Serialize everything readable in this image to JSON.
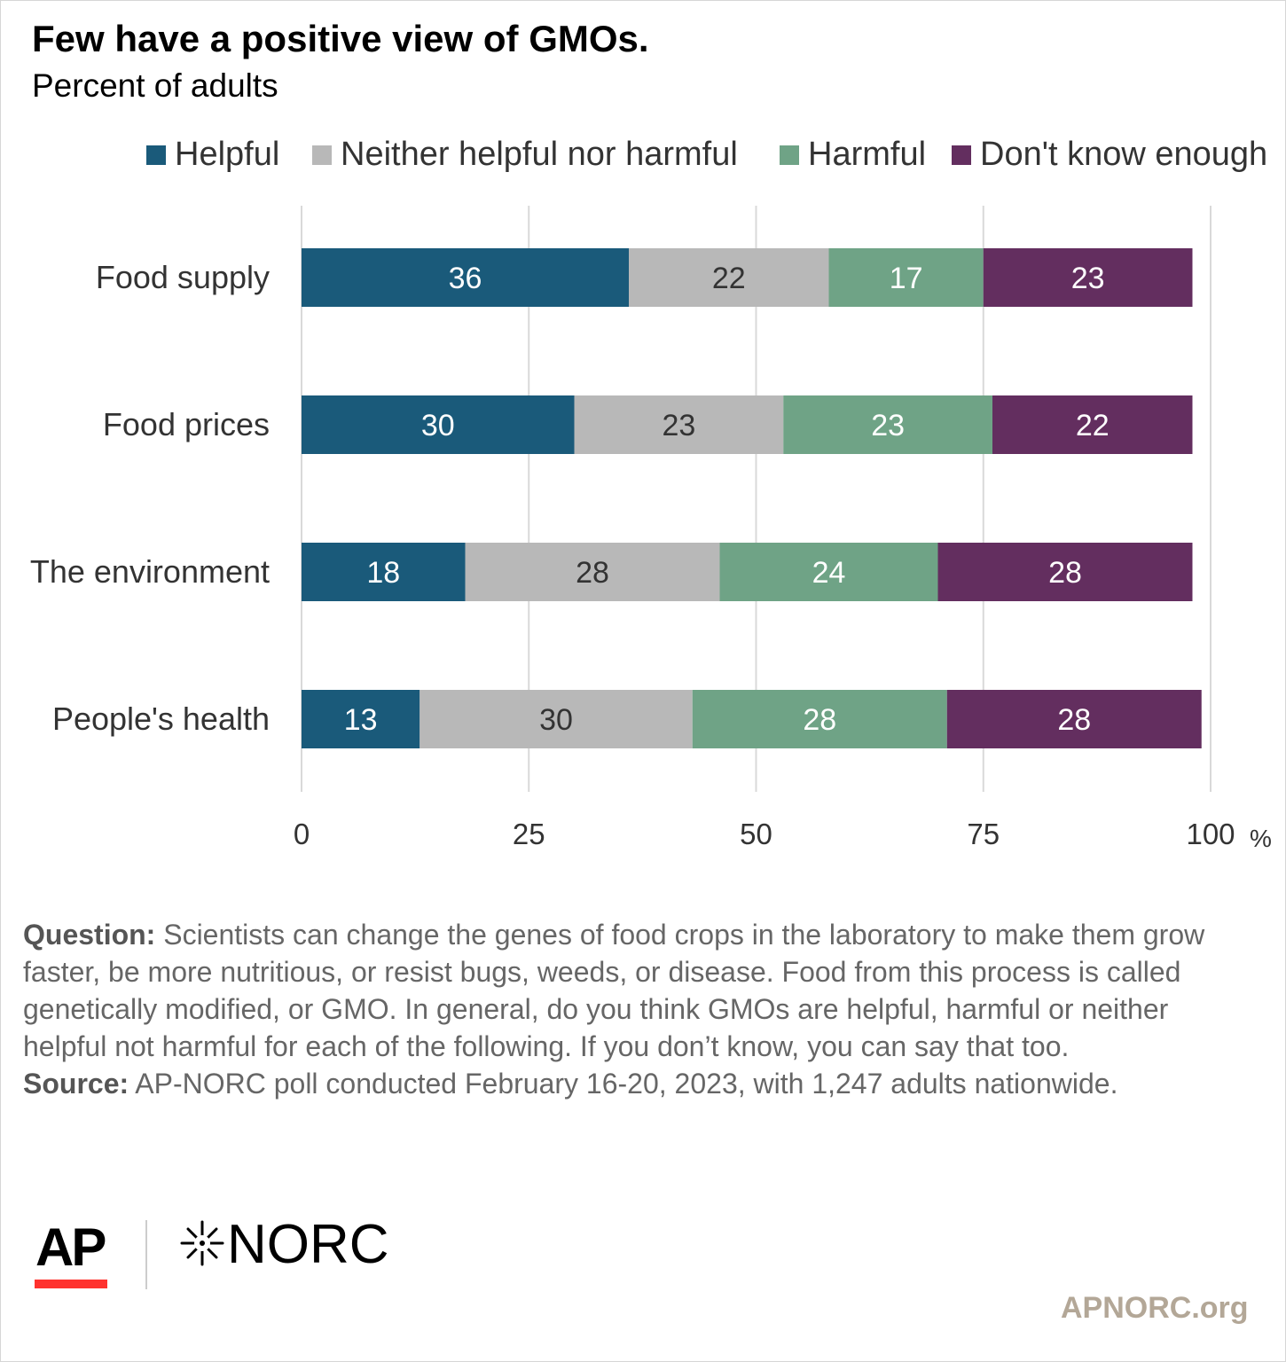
{
  "title": "Few have a positive view of GMOs.",
  "subtitle": "Percent of adults",
  "legend": [
    {
      "label": "Helpful",
      "color": "#1a5a7a"
    },
    {
      "label": "Neither helpful nor harmful",
      "color": "#b8b8b8"
    },
    {
      "label": "Harmful",
      "color": "#6fa386"
    },
    {
      "label": "Don't know enough",
      "color": "#632e5f"
    }
  ],
  "chart_data": {
    "type": "bar",
    "orientation": "horizontal",
    "stacked": true,
    "categories": [
      "Food supply",
      "Food prices",
      "The environment",
      "People's health"
    ],
    "series": [
      {
        "name": "Helpful",
        "color": "#1a5a7a",
        "label_color": "#ffffff",
        "values": [
          36,
          30,
          18,
          13
        ]
      },
      {
        "name": "Neither helpful nor harmful",
        "color": "#b8b8b8",
        "label_color": "#333333",
        "values": [
          22,
          23,
          28,
          30
        ]
      },
      {
        "name": "Harmful",
        "color": "#6fa386",
        "label_color": "#ffffff",
        "values": [
          17,
          23,
          24,
          28
        ]
      },
      {
        "name": "Don't know enough",
        "color": "#632e5f",
        "label_color": "#ffffff",
        "values": [
          23,
          22,
          28,
          28
        ]
      }
    ],
    "xlim": [
      0,
      100
    ],
    "xticks": [
      "0",
      "25",
      "50",
      "75",
      "100"
    ],
    "x_unit": "%",
    "grid": true,
    "legend_position": "top"
  },
  "notes": {
    "question_label": "Question:",
    "question_text": " Scientists can change the genes of food crops in the laboratory to make them grow faster, be more nutritious, or resist bugs, weeds, or disease. Food from this process is called genetically modified, or GMO.  In general, do you think GMOs are helpful, harmful or neither helpful not harmful for each of the following. If you don’t know, you can say that too.",
    "source_label": "Source:",
    "source_text": " AP-NORC poll conducted February 16-20, 2023, with 1,247 adults nationwide."
  },
  "branding": {
    "ap_logo": "AP",
    "norc_logo": "NORC",
    "norc_icon": "norc-star-icon",
    "website": "APNORC.org"
  }
}
